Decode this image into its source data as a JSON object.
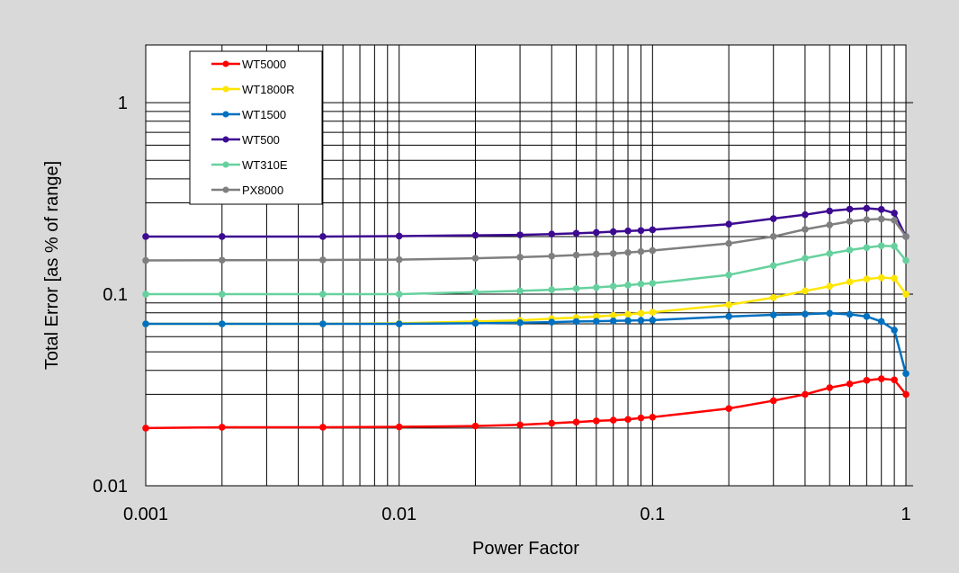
{
  "chart_data": {
    "type": "line",
    "title": "",
    "xlabel": "Power Factor",
    "ylabel": "Total Error [as % of range]",
    "x_scale": "log",
    "y_scale": "log",
    "xlim": [
      0.001,
      1
    ],
    "ylim": [
      0.01,
      2
    ],
    "x_tick_labels": [
      "0.001",
      "0.01",
      "0.1",
      "1"
    ],
    "y_tick_labels": [
      "0.01",
      "0.1",
      "1"
    ],
    "grid": true,
    "legend_position": "top-left",
    "series": [
      {
        "name": "WT5000",
        "color": "#ff0000",
        "x": [
          0.001,
          0.002,
          0.005,
          0.01,
          0.02,
          0.03,
          0.04,
          0.05,
          0.06,
          0.07,
          0.08,
          0.09,
          0.1,
          0.2,
          0.3,
          0.4,
          0.5,
          0.6,
          0.7,
          0.8,
          0.9,
          1
        ],
        "y": [
          0.02,
          0.0202,
          0.0202,
          0.0203,
          0.0205,
          0.0208,
          0.0212,
          0.0215,
          0.0218,
          0.022,
          0.0222,
          0.0226,
          0.0228,
          0.0253,
          0.0278,
          0.03,
          0.0325,
          0.034,
          0.0355,
          0.0362,
          0.0357,
          0.03
        ]
      },
      {
        "name": "WT1800R",
        "color": "#ffe600",
        "x": [
          0.001,
          0.002,
          0.005,
          0.01,
          0.02,
          0.03,
          0.04,
          0.05,
          0.06,
          0.07,
          0.08,
          0.09,
          0.1,
          0.2,
          0.3,
          0.4,
          0.5,
          0.6,
          0.7,
          0.8,
          0.9,
          1
        ],
        "y": [
          0.07,
          0.07,
          0.07,
          0.0705,
          0.072,
          0.073,
          0.0745,
          0.0755,
          0.0765,
          0.0775,
          0.0785,
          0.0795,
          0.0805,
          0.088,
          0.096,
          0.104,
          0.11,
          0.116,
          0.12,
          0.122,
          0.121,
          0.1
        ]
      },
      {
        "name": "WT1500",
        "color": "#0070c0",
        "x": [
          0.001,
          0.002,
          0.005,
          0.01,
          0.02,
          0.03,
          0.04,
          0.05,
          0.06,
          0.07,
          0.08,
          0.09,
          0.1,
          0.2,
          0.3,
          0.4,
          0.5,
          0.6,
          0.7,
          0.8,
          0.9,
          1
        ],
        "y": [
          0.07,
          0.07,
          0.07,
          0.07,
          0.0705,
          0.071,
          0.0715,
          0.072,
          0.0722,
          0.0725,
          0.0728,
          0.073,
          0.0732,
          0.0765,
          0.078,
          0.0787,
          0.0795,
          0.0785,
          0.0765,
          0.072,
          0.065,
          0.0385
        ]
      },
      {
        "name": "WT500",
        "color": "#3d0a91",
        "x": [
          0.001,
          0.002,
          0.005,
          0.01,
          0.02,
          0.03,
          0.04,
          0.05,
          0.06,
          0.07,
          0.08,
          0.09,
          0.1,
          0.2,
          0.3,
          0.4,
          0.5,
          0.6,
          0.7,
          0.8,
          0.9,
          1
        ],
        "y": [
          0.2,
          0.2,
          0.2,
          0.201,
          0.203,
          0.204,
          0.206,
          0.208,
          0.21,
          0.212,
          0.214,
          0.215,
          0.217,
          0.232,
          0.248,
          0.26,
          0.272,
          0.278,
          0.281,
          0.277,
          0.265,
          0.2
        ]
      },
      {
        "name": "WT310E",
        "color": "#66d19e",
        "x": [
          0.001,
          0.002,
          0.005,
          0.01,
          0.02,
          0.03,
          0.04,
          0.05,
          0.06,
          0.07,
          0.08,
          0.09,
          0.1,
          0.2,
          0.3,
          0.4,
          0.5,
          0.6,
          0.7,
          0.8,
          0.9,
          1
        ],
        "y": [
          0.1,
          0.1,
          0.1,
          0.1,
          0.1025,
          0.104,
          0.1055,
          0.107,
          0.1085,
          0.11,
          0.1115,
          0.113,
          0.114,
          0.126,
          0.141,
          0.154,
          0.163,
          0.17,
          0.175,
          0.179,
          0.178,
          0.15
        ]
      },
      {
        "name": "PX8000",
        "color": "#7f7f7f",
        "x": [
          0.001,
          0.002,
          0.005,
          0.01,
          0.02,
          0.03,
          0.04,
          0.05,
          0.06,
          0.07,
          0.08,
          0.09,
          0.1,
          0.2,
          0.3,
          0.4,
          0.5,
          0.6,
          0.7,
          0.8,
          0.9,
          1
        ],
        "y": [
          0.15,
          0.1505,
          0.151,
          0.1515,
          0.154,
          0.156,
          0.158,
          0.16,
          0.162,
          0.163,
          0.165,
          0.167,
          0.169,
          0.184,
          0.2,
          0.218,
          0.23,
          0.24,
          0.245,
          0.247,
          0.243,
          0.2
        ]
      }
    ]
  }
}
